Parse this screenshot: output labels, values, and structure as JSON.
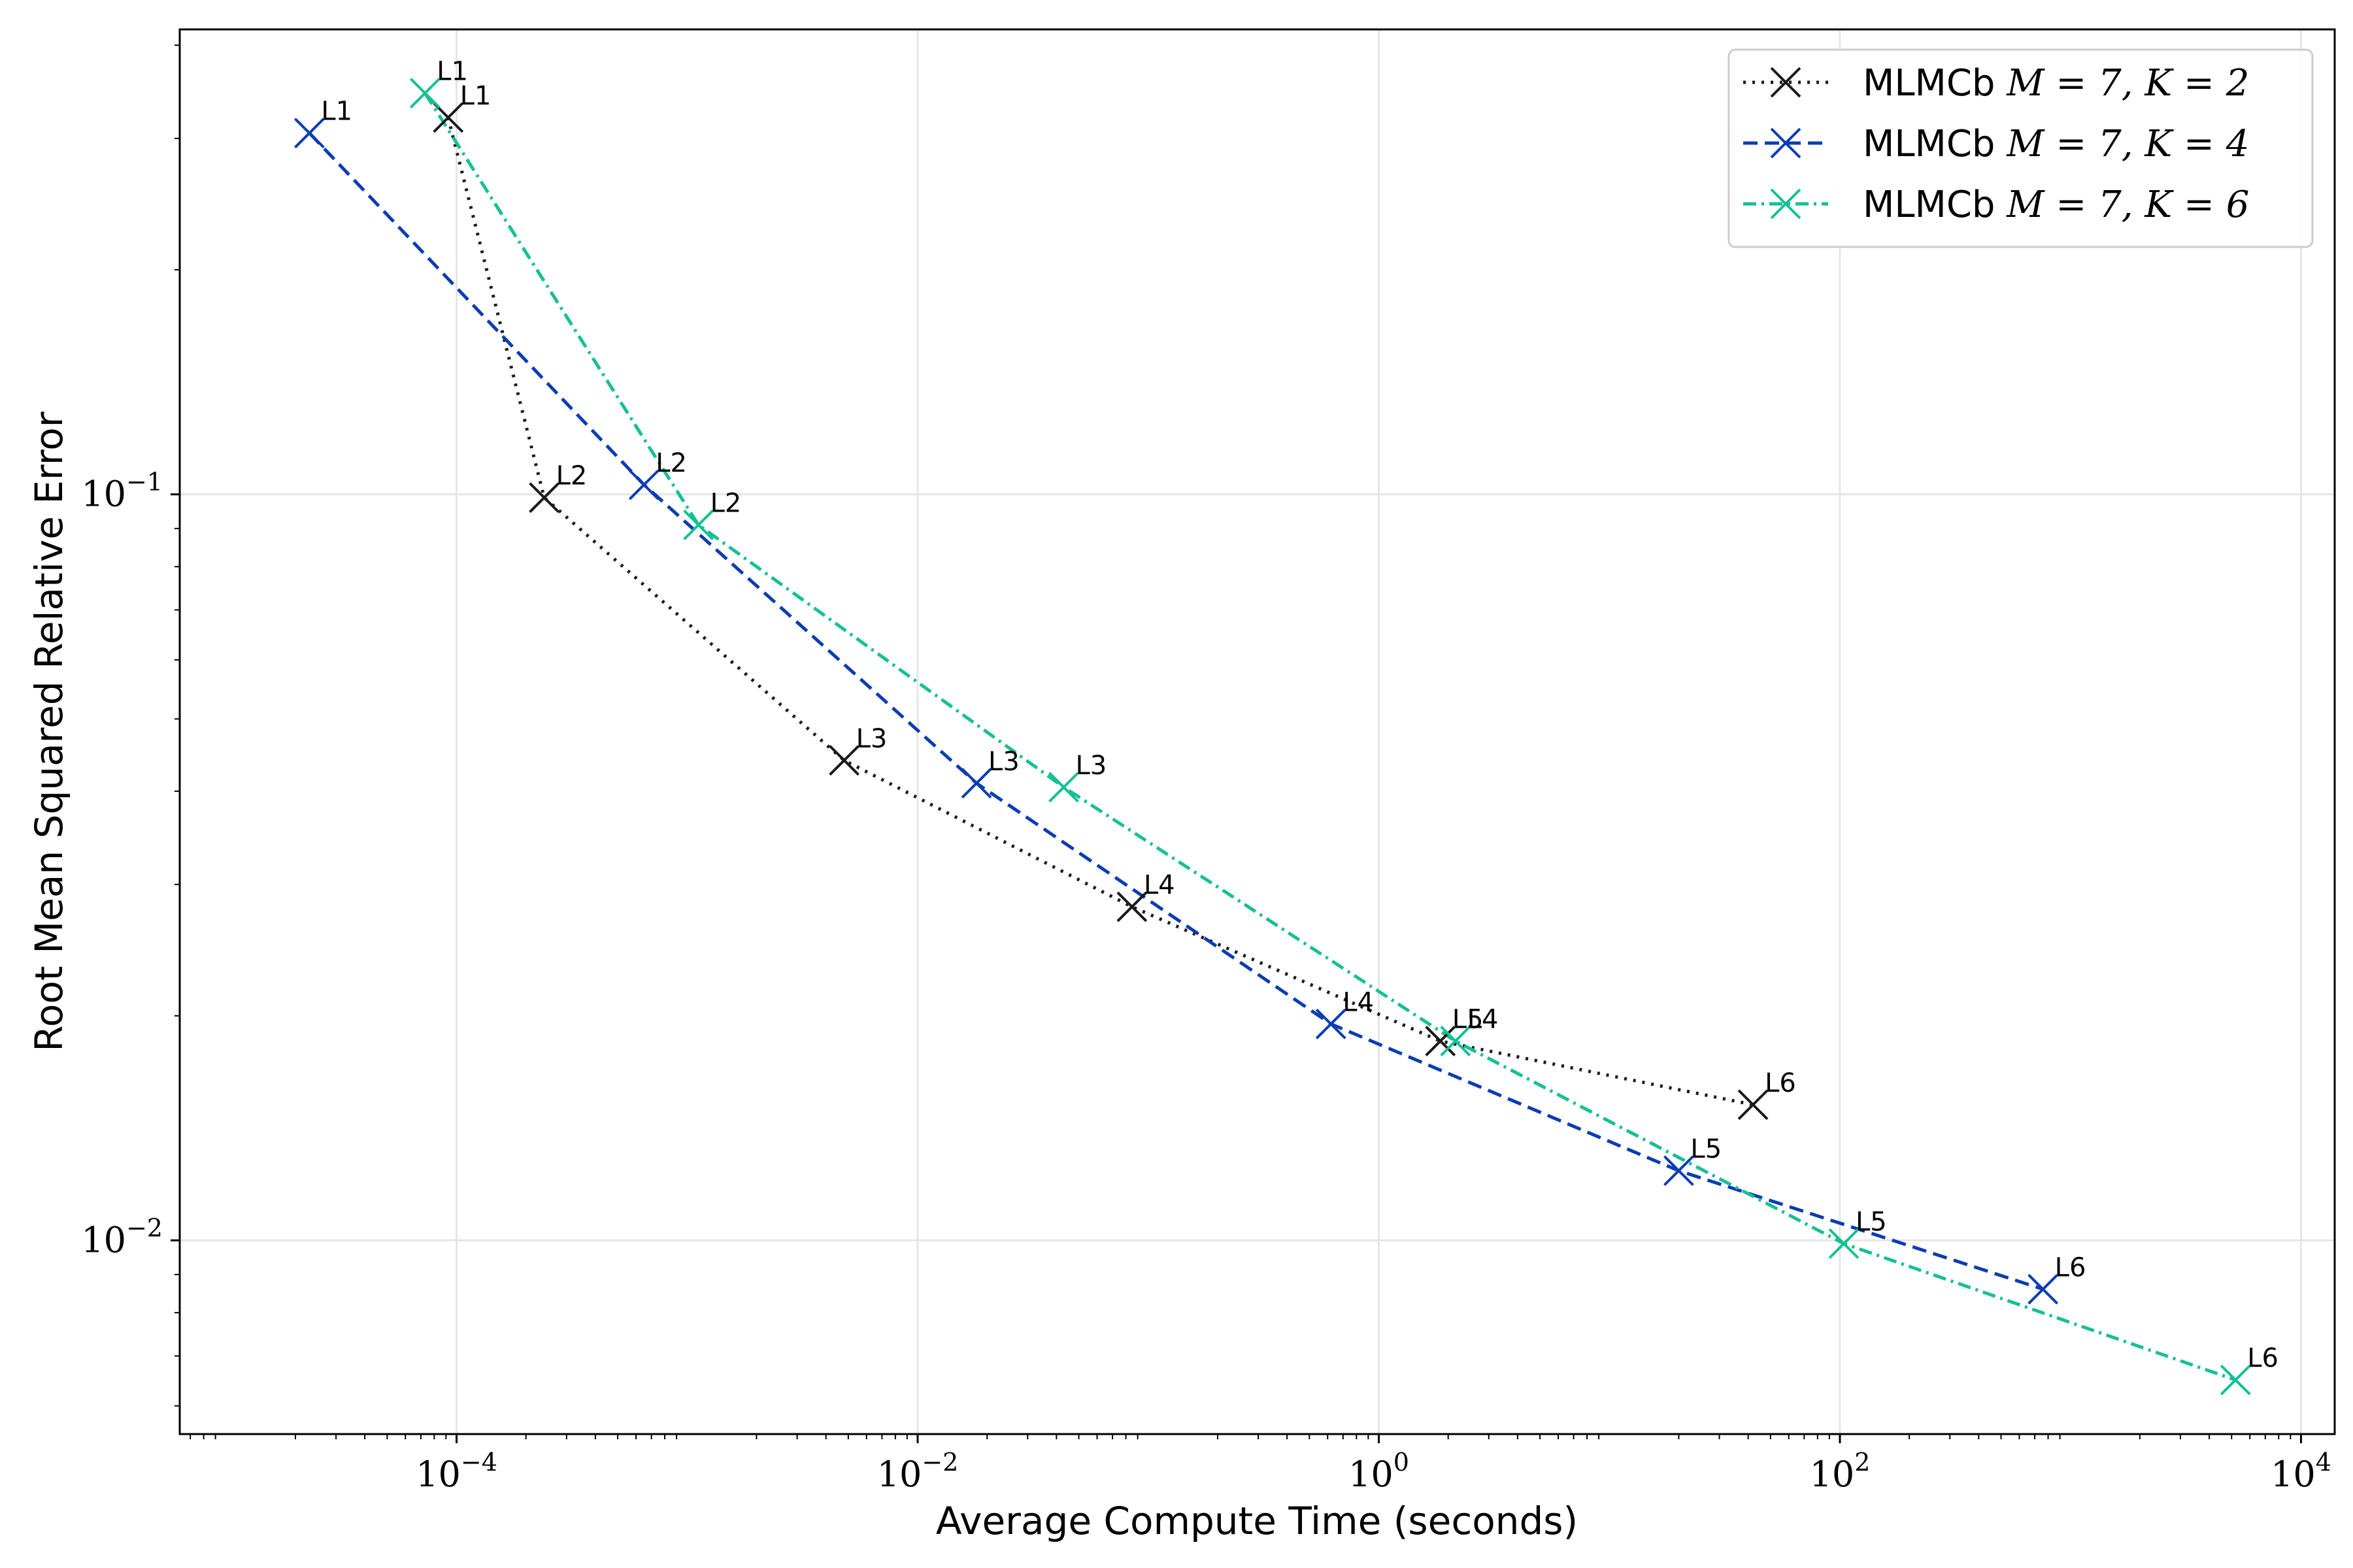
{
  "chart_data": {
    "type": "line",
    "xscale": "log",
    "yscale": "log",
    "xlabel": "Average Compute Time (seconds)",
    "ylabel": "Root Mean Squared Relative Error",
    "xlim": [
      6.3e-06,
      14000
    ],
    "ylim": [
      0.0055,
      0.42
    ],
    "grid": true,
    "legend_position": "top-right",
    "x_ticks": [
      {
        "value": 0.0001,
        "base": "10",
        "exp": "−4"
      },
      {
        "value": 0.01,
        "base": "10",
        "exp": "−2"
      },
      {
        "value": 1,
        "base": "10",
        "exp": "0"
      },
      {
        "value": 100,
        "base": "10",
        "exp": "2"
      },
      {
        "value": 10000,
        "base": "10",
        "exp": "4"
      }
    ],
    "y_ticks": [
      {
        "value": 0.1,
        "base": "10",
        "exp": "−1"
      },
      {
        "value": 0.01,
        "base": "10",
        "exp": "−2"
      }
    ],
    "series": [
      {
        "name": "MLMCb M = 7, K = 2",
        "legend_prefix": "MLMCb ",
        "legend_math": "M = 7, K = 2",
        "color": "#1a1a1a",
        "dash": "4 10",
        "points": [
          {
            "label": "L1",
            "x": 9.2e-05,
            "y": 0.32
          },
          {
            "label": "L2",
            "x": 0.00024,
            "y": 0.099
          },
          {
            "label": "L3",
            "x": 0.0048,
            "y": 0.044
          },
          {
            "label": "L4",
            "x": 0.085,
            "y": 0.028
          },
          {
            "label": "L5",
            "x": 1.85,
            "y": 0.0185
          },
          {
            "label": "L6",
            "x": 42,
            "y": 0.0152
          }
        ]
      },
      {
        "name": "MLMCb M = 7, K = 4",
        "legend_prefix": "MLMCb ",
        "legend_math": "M = 7, K = 4",
        "color": "#0a3cb4",
        "dash": "22 11",
        "points": [
          {
            "label": "L1",
            "x": 2.3e-05,
            "y": 0.305
          },
          {
            "label": "L2",
            "x": 0.00065,
            "y": 0.103
          },
          {
            "label": "L3",
            "x": 0.018,
            "y": 0.041
          },
          {
            "label": "L4",
            "x": 0.62,
            "y": 0.0195
          },
          {
            "label": "L5",
            "x": 20,
            "y": 0.0124
          },
          {
            "label": "L6",
            "x": 760,
            "y": 0.0086
          }
        ]
      },
      {
        "name": "MLMCb M = 7, K = 6",
        "legend_prefix": "MLMCb ",
        "legend_math": "M = 7, K = 6",
        "color": "#14c095",
        "dash": "20 8 4 8",
        "points": [
          {
            "label": "L1",
            "x": 7.3e-05,
            "y": 0.345
          },
          {
            "label": "L2",
            "x": 0.00112,
            "y": 0.091
          },
          {
            "label": "L3",
            "x": 0.043,
            "y": 0.0405
          },
          {
            "label": "L4",
            "x": 2.15,
            "y": 0.0185
          },
          {
            "label": "L5",
            "x": 104,
            "y": 0.0099
          },
          {
            "label": "L6",
            "x": 5200,
            "y": 0.0065
          }
        ]
      }
    ]
  }
}
